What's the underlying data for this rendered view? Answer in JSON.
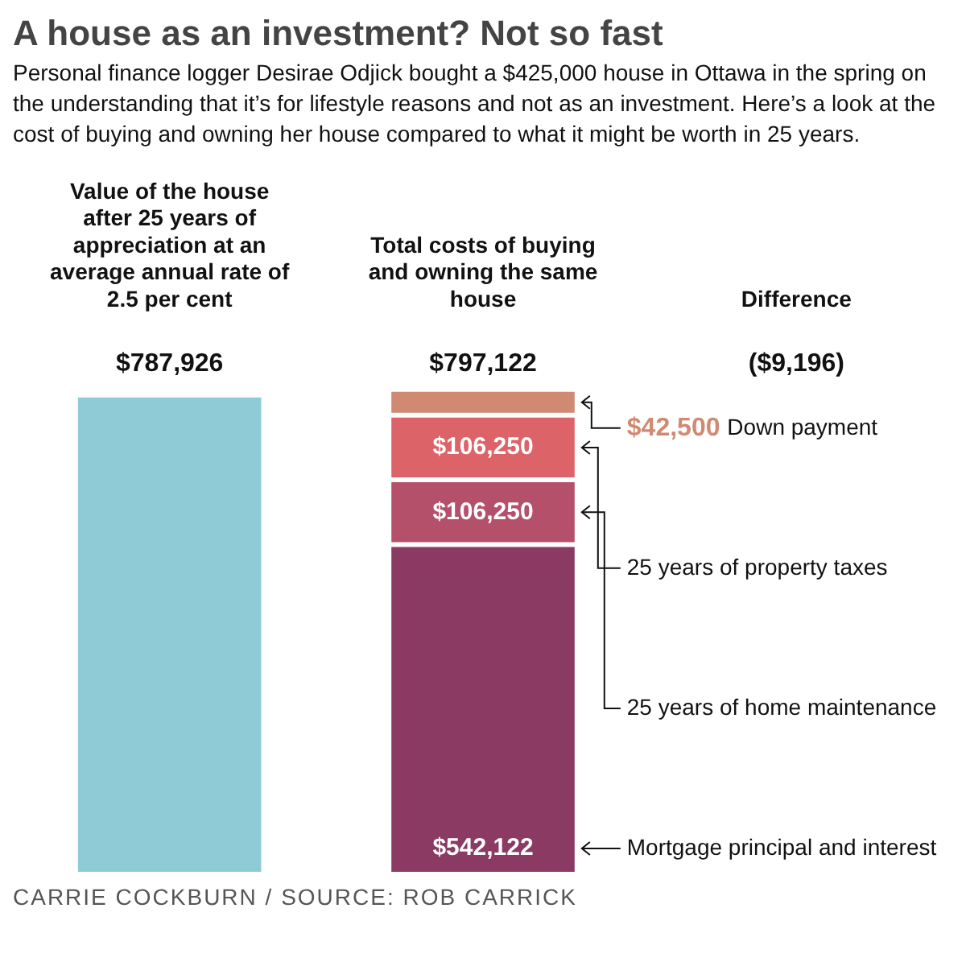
{
  "chart_data": {
    "type": "bar",
    "title": "A house as an investment? Not so fast",
    "subtitle": "Personal finance logger Desirae Odjick bought a $425,000 house in Ottawa in the spring on the understanding that it’s for lifestyle reasons and not as an investment. Here’s a look at the cost of buying and owning her house compared to what it might be worth in 25 years.",
    "categories": [
      "Value of the house after 25 years of appreciation at an average annual rate of 2.5 per cent",
      "Total costs of buying and owning the same house",
      "Difference"
    ],
    "stacked": true,
    "series": [
      {
        "color": "#8ecbd6",
        "values": [
          787926,
          null,
          null
        ]
      },
      {
        "name": "Mortgage principal and interest",
        "color": "#8a3a63",
        "values": [
          null,
          542122,
          null
        ],
        "value_labels": [
          null,
          "$542,122",
          null
        ]
      },
      {
        "name": "25 years of home maintenance",
        "color": "#b5506b",
        "values": [
          null,
          106250,
          null
        ],
        "value_labels": [
          null,
          "$106,250",
          null
        ]
      },
      {
        "name": "25 years of property taxes",
        "color": "#dc6368",
        "values": [
          null,
          106250,
          null
        ],
        "value_labels": [
          null,
          "$106,250",
          null
        ]
      },
      {
        "name": "Down payment",
        "color": "#d08a72",
        "values": [
          null,
          42500,
          null
        ],
        "value_labels": [
          null,
          "$42,500",
          null
        ]
      }
    ],
    "totals": [
      "$787,926",
      "$797,122",
      null
    ],
    "legend": false,
    "grid": false,
    "annotations": [
      "($9,196)",
      "CARRIE COCKBURN / SOURCE: ROB CARRICK"
    ]
  }
}
